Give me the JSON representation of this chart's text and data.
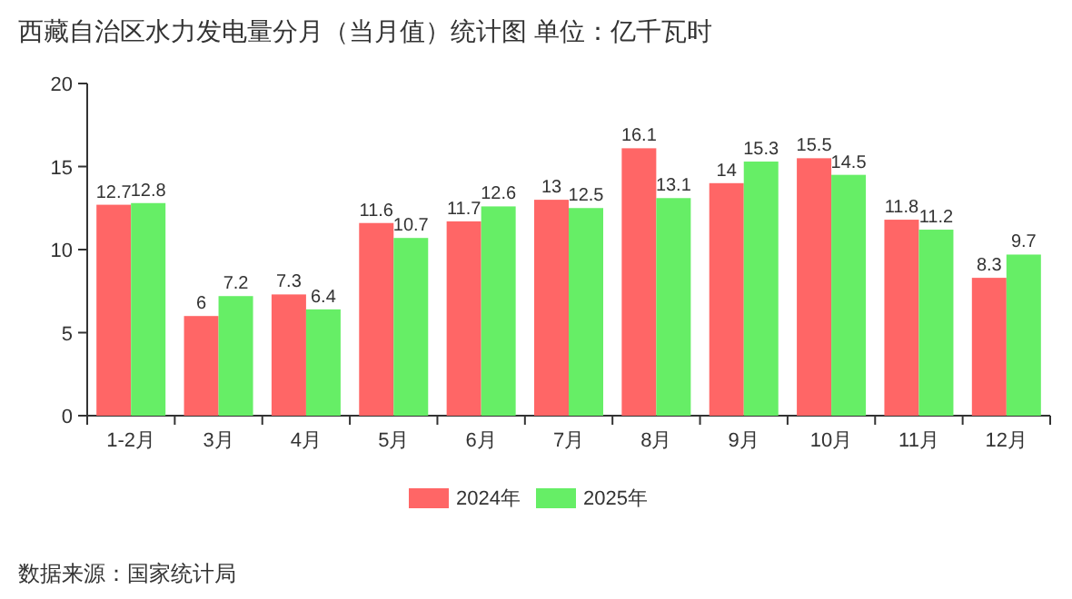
{
  "chart_data": {
    "type": "bar",
    "title": "西藏自治区水力发电量分月（当月值）统计图 单位：亿千瓦时",
    "categories": [
      "1-2月",
      "3月",
      "4月",
      "5月",
      "6月",
      "7月",
      "8月",
      "9月",
      "10月",
      "11月",
      "12月"
    ],
    "series": [
      {
        "name": "2024年",
        "color": "#ff6666",
        "values": [
          12.7,
          6,
          7.3,
          11.6,
          11.7,
          13,
          16.1,
          14,
          15.5,
          11.8,
          8.3
        ]
      },
      {
        "name": "2025年",
        "color": "#66ee66",
        "values": [
          12.8,
          7.2,
          6.4,
          10.7,
          12.6,
          12.5,
          13.1,
          15.3,
          14.5,
          11.2,
          9.7
        ]
      }
    ],
    "ylim": [
      0,
      20
    ],
    "yticks": [
      0,
      5,
      10,
      15,
      20
    ],
    "data_labels": true,
    "legend": "bottom",
    "annotations": [
      "数据来源：国家统计局"
    ]
  }
}
